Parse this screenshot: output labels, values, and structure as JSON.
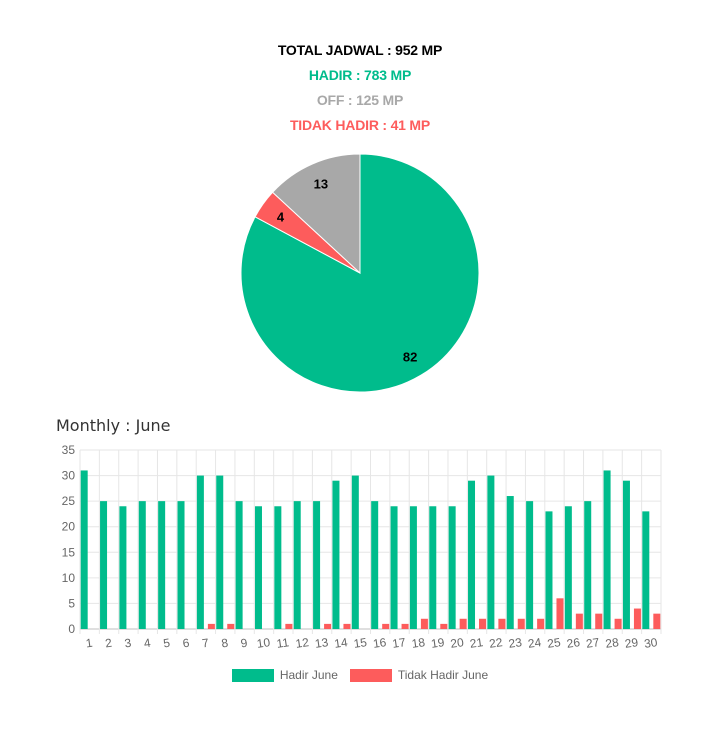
{
  "summary": {
    "total": "TOTAL JADWAL : 952 MP",
    "hadir": "HADIR : 783 MP",
    "off": "OFF : 125 MP",
    "tidak_hadir": "TIDAK HADIR : 41 MP"
  },
  "colors": {
    "hadir": "#00bc8c",
    "off": "#a8a8a8",
    "tidak_hadir": "#fd5c5c",
    "total": "#000000",
    "grid": "#e6e6e6",
    "tick": "#666666"
  },
  "monthly_title": "Monthly : June",
  "chart_data": [
    {
      "type": "pie",
      "title": "",
      "slices": [
        {
          "label": "Hadir",
          "value": 82,
          "color": "#00bc8c"
        },
        {
          "label": "Tidak Hadir",
          "value": 4,
          "color": "#fd5c5c"
        },
        {
          "label": "Off",
          "value": 13,
          "color": "#a8a8a8"
        }
      ]
    },
    {
      "type": "bar",
      "title": "Monthly : June",
      "categories": [
        "1",
        "2",
        "3",
        "4",
        "5",
        "6",
        "7",
        "8",
        "9",
        "10",
        "11",
        "12",
        "13",
        "14",
        "15",
        "16",
        "17",
        "18",
        "19",
        "20",
        "21",
        "22",
        "23",
        "24",
        "25",
        "26",
        "27",
        "28",
        "29",
        "30"
      ],
      "series": [
        {
          "name": "Hadir June",
          "color": "#00bc8c",
          "values": [
            31,
            25,
            24,
            25,
            25,
            25,
            30,
            30,
            25,
            24,
            24,
            25,
            25,
            29,
            30,
            25,
            24,
            24,
            24,
            24,
            29,
            30,
            26,
            25,
            23,
            24,
            25,
            31,
            29,
            23
          ]
        },
        {
          "name": "Tidak Hadir June",
          "color": "#fd5c5c",
          "values": [
            0,
            0,
            0,
            0,
            0,
            0,
            1,
            1,
            0,
            0,
            1,
            0,
            1,
            1,
            0,
            1,
            1,
            2,
            1,
            2,
            2,
            2,
            2,
            2,
            6,
            3,
            3,
            2,
            4,
            3
          ]
        }
      ],
      "ylim": [
        0,
        35
      ],
      "yticks": [
        0,
        5,
        10,
        15,
        20,
        25,
        30,
        35
      ],
      "legend_position": "bottom"
    }
  ]
}
